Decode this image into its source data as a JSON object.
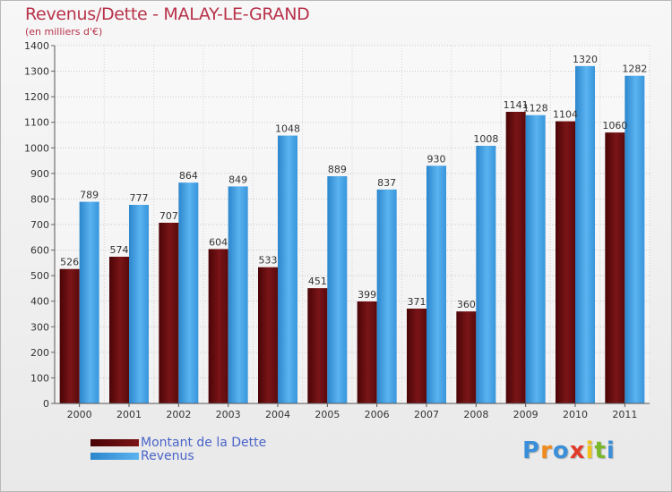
{
  "header": {
    "title": "Revenus/Dette - MALAY-LE-GRAND",
    "subtitle": "(en milliers d'€)"
  },
  "colors": {
    "title": "#b8324a",
    "dette": "#6b0f12",
    "revenus": "#3d9ee3",
    "legend_text": "#4a64c8"
  },
  "chart_data": {
    "type": "bar",
    "title": "Revenus/Dette - MALAY-LE-GRAND",
    "ylabel": "(en milliers d'€)",
    "categories": [
      "2000",
      "2001",
      "2002",
      "2003",
      "2004",
      "2005",
      "2006",
      "2007",
      "2008",
      "2009",
      "2010",
      "2011"
    ],
    "series": [
      {
        "name": "Montant de la Dette",
        "values": [
          526,
          574,
          707,
          604,
          533,
          451,
          399,
          371,
          360,
          1141,
          1104,
          1060
        ]
      },
      {
        "name": "Revenus",
        "values": [
          789,
          777,
          864,
          849,
          1048,
          889,
          837,
          930,
          1008,
          1128,
          1320,
          1282
        ]
      }
    ],
    "ylim": [
      0,
      1400
    ],
    "yticks": [
      0,
      100,
      200,
      300,
      400,
      500,
      600,
      700,
      800,
      900,
      1000,
      1100,
      1200,
      1300,
      1400
    ],
    "grid": true,
    "legend_position": "bottom-left"
  },
  "legend": [
    {
      "label": "Montant de la Dette"
    },
    {
      "label": "Revenus"
    }
  ],
  "logo": {
    "letters": [
      "P",
      "r",
      "o",
      "x",
      "i",
      "t",
      "i"
    ],
    "letter_colors": [
      "#3a8fd8",
      "#f08a1c",
      "#3a8fd8",
      "#e23a2a",
      "#f0c21c",
      "#7ab82a",
      "#3a8fd8"
    ]
  }
}
